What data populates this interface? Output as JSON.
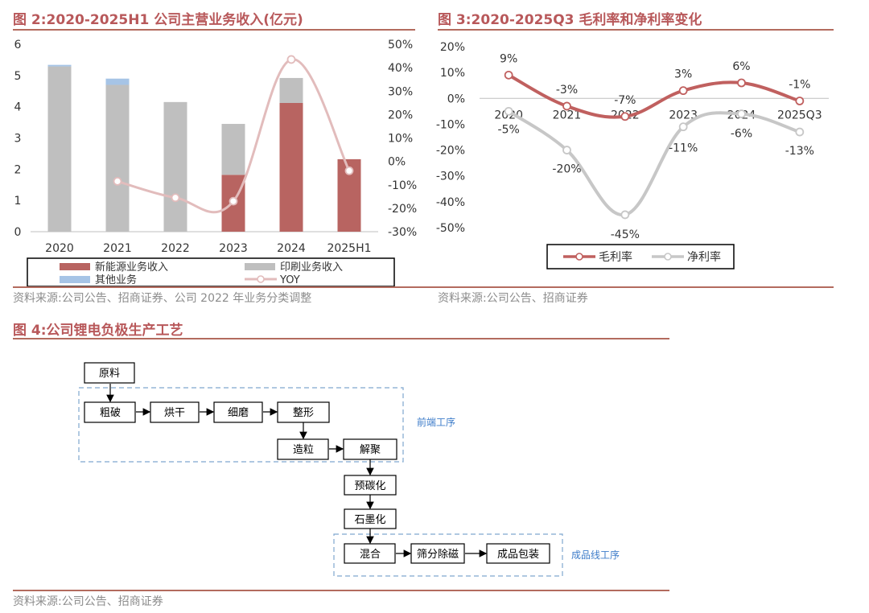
{
  "fig2": {
    "title": "图 2:2020-2025H1 公司主营业务收入(亿元)",
    "source": "资料来源:公司公告、招商证券、公司 2022 年业务分类调整"
  },
  "fig3": {
    "title": "图 3:2020-2025Q3 毛利率和净利率变化",
    "source": "资料来源:公司公告、招商证券"
  },
  "fig4": {
    "title": "图 4:公司锂电负极生产工艺",
    "source": "资料来源:公司公告、招商证券",
    "group_front": "前端工序",
    "group_finish": "成品线工序",
    "steps": {
      "raw": "原料",
      "crush": "粗破",
      "dry": "烘干",
      "grind": "细磨",
      "shape": "整形",
      "granulate": "造粒",
      "depolymerize": "解聚",
      "precarbonize": "预碳化",
      "graphitize": "石墨化",
      "mix": "混合",
      "sieve": "筛分除磁",
      "pack": "成品包装"
    }
  },
  "colors": {
    "new_energy": "#b86461",
    "printing": "#bfbfbf",
    "other": "#a6c4e6",
    "yoy": "#e2bcbc",
    "gross": "#c0605f",
    "net": "#c7c7c7",
    "title": "#b8585a",
    "rule": "#b36b5e",
    "box_dash": "#7fa7cf",
    "group_label": "#3d7cc9"
  },
  "chart_data": [
    {
      "type": "bar",
      "title": "图 2:2020-2025H1 公司主营业务收入(亿元)",
      "categories": [
        "2020",
        "2021",
        "2022",
        "2023",
        "2024",
        "2025H1"
      ],
      "stacked": true,
      "ylim": [
        0,
        6
      ],
      "yticks": [
        "6",
        "5",
        "4",
        "3",
        "2",
        "1",
        "0"
      ],
      "y2lim": [
        -30,
        50
      ],
      "y2ticks": [
        "50%",
        "40%",
        "30%",
        "20%",
        "10%",
        "0%",
        "-10%",
        "-20%",
        "-30%"
      ],
      "series": [
        {
          "name": "新能源业务收入",
          "values": [
            0,
            0,
            0,
            1.82,
            4.12,
            2.32
          ]
        },
        {
          "name": "印刷业务收入",
          "values": [
            5.29,
            4.7,
            4.15,
            1.63,
            0.8,
            0
          ]
        },
        {
          "name": "其他业务",
          "values": [
            0.05,
            0.2,
            0,
            0,
            0,
            0
          ]
        },
        {
          "name": "YOY",
          "type": "line",
          "axis": "right",
          "values": [
            null,
            -8.5,
            -15.5,
            -17,
            43.5,
            -4
          ]
        }
      ],
      "grid": false,
      "legend": "bottom"
    },
    {
      "type": "line",
      "title": "图 3:2020-2025Q3 毛利率和净利率变化",
      "categories": [
        "2020",
        "2021",
        "2022",
        "2023",
        "2024",
        "2025Q3"
      ],
      "ylim": [
        -50,
        20
      ],
      "yticks": [
        "20%",
        "10%",
        "0%",
        "-10%",
        "-20%",
        "-30%",
        "-40%",
        "-50%"
      ],
      "series": [
        {
          "name": "毛利率",
          "values": [
            9,
            -3,
            -7,
            3,
            6,
            -1
          ],
          "labels": [
            "9%",
            "-3%",
            "-7%",
            "3%",
            "6%",
            "-1%"
          ]
        },
        {
          "name": "净利率",
          "values": [
            -5,
            -20,
            -45,
            -11,
            -6,
            -13
          ],
          "labels": [
            "-5%",
            "-20%",
            "-45%",
            "-11%",
            "-6%",
            "-13%"
          ]
        }
      ],
      "grid": false,
      "legend": "bottom"
    }
  ]
}
